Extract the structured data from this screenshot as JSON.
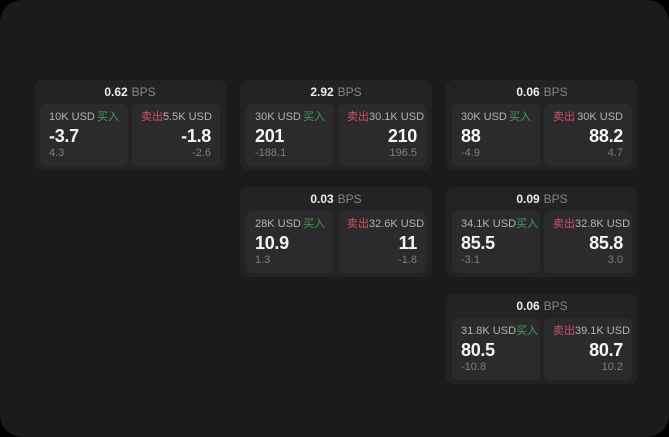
{
  "colors": {
    "buy_accent": "#3ea05a",
    "sell_accent": "#d05064",
    "panel_background": "#1b1b1d",
    "card_background": "#232325",
    "tile_background": "#2b2b2d"
  },
  "cards": [
    {
      "bps": "0.62",
      "bps_unit": "BPS",
      "buy": {
        "size": "10K USD",
        "side": "买入",
        "price": "-3.7",
        "delta": "4.3"
      },
      "sell": {
        "side": "卖出",
        "size": "5.5K USD",
        "price": "-1.8",
        "delta": "-2.6"
      }
    },
    {
      "bps": "2.92",
      "bps_unit": "BPS",
      "buy": {
        "size": "30K USD",
        "side": "买入",
        "price": "201",
        "delta": "-188.1"
      },
      "sell": {
        "side": "卖出",
        "size": "30.1K USD",
        "price": "210",
        "delta": "196.5"
      }
    },
    {
      "bps": "0.06",
      "bps_unit": "BPS",
      "buy": {
        "size": "30K USD",
        "side": "买入",
        "price": "88",
        "delta": "-4.9"
      },
      "sell": {
        "side": "卖出",
        "size": "30K USD",
        "price": "88.2",
        "delta": "4.7"
      }
    },
    {
      "bps": "0.03",
      "bps_unit": "BPS",
      "buy": {
        "size": "28K USD",
        "side": "买入",
        "price": "10.9",
        "delta": "1.3"
      },
      "sell": {
        "side": "卖出",
        "size": "32.6K USD",
        "price": "11",
        "delta": "-1.8"
      }
    },
    {
      "bps": "0.09",
      "bps_unit": "BPS",
      "buy": {
        "size": "34.1K USD",
        "side": "买入",
        "price": "85.5",
        "delta": "-3.1"
      },
      "sell": {
        "side": "卖出",
        "size": "32.8K USD",
        "price": "85.8",
        "delta": "3.0"
      }
    },
    {
      "bps": "0.06",
      "bps_unit": "BPS",
      "buy": {
        "size": "31.8K USD",
        "side": "买入",
        "price": "80.5",
        "delta": "-10.8"
      },
      "sell": {
        "side": "卖出",
        "size": "39.1K USD",
        "price": "80.7",
        "delta": "10.2"
      }
    }
  ]
}
